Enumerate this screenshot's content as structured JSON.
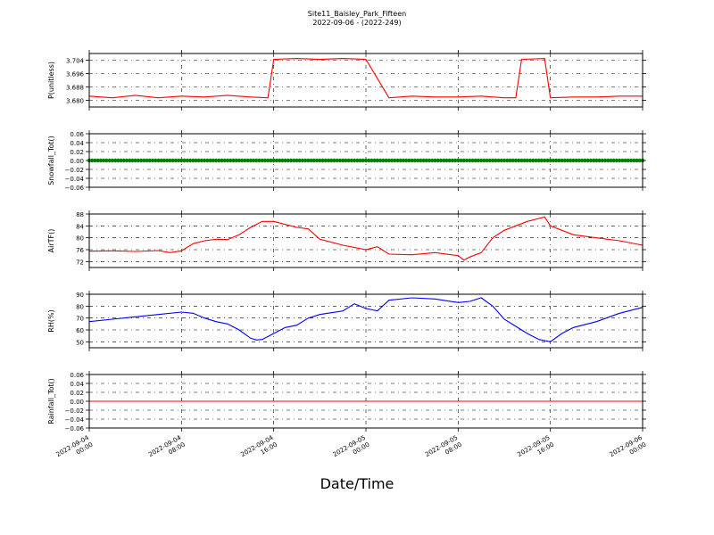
{
  "figure": {
    "title": "Site11_Baisley_Park_Fifteen",
    "subtitle": "2022-09-06 - (2022-249)",
    "xlabel": "Date/Time"
  },
  "chart_data": [
    {
      "type": "line",
      "ylabel": "P(unitless)",
      "color": "#ff0000",
      "ylim": [
        3.676,
        3.708
      ],
      "yticks": [
        3.68,
        3.688,
        3.696,
        3.704
      ],
      "ytick_labels": [
        "3.680",
        "3.688",
        "3.696",
        "3.704"
      ],
      "xlim": [
        0,
        48
      ],
      "series": [
        {
          "x": [
            0,
            2,
            4,
            6,
            8,
            10,
            12,
            14,
            15.5,
            16,
            18,
            20,
            22,
            24,
            26,
            28,
            30,
            32,
            34,
            36,
            37,
            37.5,
            39.5,
            40,
            42,
            44,
            46,
            48
          ],
          "values": [
            3.6825,
            3.6815,
            3.683,
            3.6815,
            3.6825,
            3.682,
            3.683,
            3.682,
            3.6815,
            3.7045,
            3.705,
            3.7045,
            3.705,
            3.7045,
            3.6815,
            3.6825,
            3.682,
            3.682,
            3.6825,
            3.6815,
            3.6815,
            3.7045,
            3.705,
            3.6815,
            3.682,
            3.682,
            3.6825,
            3.6825
          ]
        }
      ]
    },
    {
      "type": "scatter",
      "ylabel": "Snowfall_Tot()",
      "color": "#008000",
      "ylim": [
        -0.06,
        0.06
      ],
      "yticks": [
        -0.06,
        -0.04,
        -0.02,
        0.0,
        0.02,
        0.04,
        0.06
      ],
      "ytick_labels": [
        "−0.06",
        "−0.04",
        "−0.02",
        "0.00",
        "0.02",
        "0.04",
        "0.06"
      ],
      "xlim": [
        0,
        48
      ],
      "series": [
        {
          "x_start": 0,
          "x_end": 48,
          "x_step": 0.25,
          "constant_value": 0.0
        }
      ]
    },
    {
      "type": "line",
      "ylabel": "AirTF()",
      "color": "#ff0000",
      "ylim": [
        70,
        88
      ],
      "yticks": [
        72,
        76,
        80,
        84,
        88
      ],
      "ytick_labels": [
        "72",
        "76",
        "80",
        "84",
        "88"
      ],
      "xlim": [
        0,
        48
      ],
      "series": [
        {
          "x": [
            0,
            2,
            4,
            6,
            7,
            8,
            9,
            10,
            11,
            12,
            13,
            14,
            15,
            16,
            17,
            18,
            19,
            20,
            22,
            24,
            25,
            26,
            28,
            30,
            32,
            32.5,
            33,
            34,
            35,
            36,
            37,
            38,
            39,
            39.5,
            40,
            41,
            42,
            44,
            46,
            48
          ],
          "values": [
            75.5,
            75.6,
            75.4,
            75.7,
            75.0,
            75.6,
            78.0,
            79.0,
            79.5,
            79.4,
            81.0,
            83.5,
            85.5,
            85.5,
            84.5,
            83.5,
            83.0,
            79.5,
            77.5,
            76.0,
            77.0,
            74.5,
            74.3,
            75.0,
            74.0,
            72.5,
            73.5,
            75.0,
            80.0,
            82.5,
            84.0,
            85.5,
            86.5,
            87.0,
            84.0,
            82.5,
            81.0,
            80.0,
            79.0,
            77.5
          ]
        }
      ]
    },
    {
      "type": "line",
      "ylabel": "RH(%)",
      "color": "#0000ff",
      "ylim": [
        45,
        90
      ],
      "yticks": [
        50,
        60,
        70,
        80,
        90
      ],
      "ytick_labels": [
        "50",
        "60",
        "70",
        "80",
        "90"
      ],
      "xlim": [
        0,
        48
      ],
      "series": [
        {
          "x": [
            0,
            2,
            4,
            6,
            8,
            9,
            10,
            11,
            12,
            13,
            14,
            14.5,
            15,
            16,
            17,
            18,
            19,
            20,
            22,
            23,
            24,
            25,
            26,
            28,
            30,
            32,
            33,
            34,
            35,
            36,
            37,
            38,
            39,
            40,
            41,
            42,
            44,
            46,
            48
          ],
          "values": [
            67,
            69,
            71,
            73,
            75,
            74,
            70,
            67,
            65,
            60,
            53,
            51.5,
            52,
            57,
            62,
            64,
            70,
            73,
            76,
            82,
            78,
            76,
            85,
            87,
            86,
            83,
            84,
            87,
            80,
            69,
            63,
            57,
            52,
            50,
            57,
            62,
            67,
            74,
            79
          ]
        }
      ]
    },
    {
      "type": "line",
      "ylabel": "Rainfall_Tot()",
      "color": "#ff0000",
      "ylim": [
        -0.06,
        0.06
      ],
      "yticks": [
        -0.06,
        -0.04,
        -0.02,
        0.0,
        0.02,
        0.04,
        0.06
      ],
      "ytick_labels": [
        "−0.06",
        "−0.04",
        "−0.02",
        "0.00",
        "0.02",
        "0.04",
        "0.06"
      ],
      "xlim": [
        0,
        48
      ],
      "series": [
        {
          "x": [
            0,
            48
          ],
          "values": [
            0.0,
            0.0
          ]
        }
      ]
    }
  ],
  "x_axis": {
    "ticks": [
      0,
      8,
      16,
      24,
      32,
      40,
      48
    ],
    "tick_labels": [
      [
        "2022-09-04",
        "00:00"
      ],
      [
        "2022-09-04",
        "08:00"
      ],
      [
        "2022-09-04",
        "16:00"
      ],
      [
        "2022-09-05",
        "00:00"
      ],
      [
        "2022-09-05",
        "08:00"
      ],
      [
        "2022-09-05",
        "16:00"
      ],
      [
        "2022-09-06",
        "00:00"
      ]
    ],
    "grid": true
  }
}
